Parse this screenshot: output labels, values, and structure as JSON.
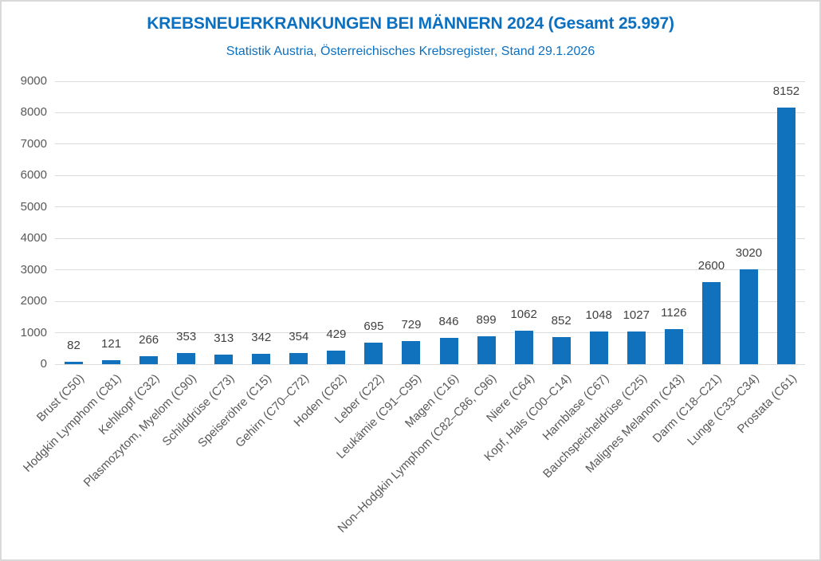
{
  "chart_data": {
    "type": "bar",
    "title": "KREBSNEUERKRANKUNGEN BEI MÄNNERN 2024 (Gesamt 25.997)",
    "subtitle": "Statistik Austria, Österreichisches Krebsregister, Stand 29.1.2026",
    "categories": [
      "Brust (C50)",
      "Hodgkin Lymphom (C81)",
      "Kehlkopf (C32)",
      "Plasmozytom, Myelom (C90)",
      "Schilddrüse (C73)",
      "Speiseröhre (C15)",
      "Gehirn (C70–C72)",
      "Hoden (C62)",
      "Leber (C22)",
      "Leukämie (C91–C95)",
      "Magen (C16)",
      "Non–Hodgkin Lymphom (C82–C86, C96)",
      "Niere (C64)",
      "Kopf, Hals (C00–C14)",
      "Harnblase (C67)",
      "Bauchspeicheldrüse (C25)",
      "Malignes Melanom (C43)",
      "Darm (C18–C21)",
      "Lunge (C33–C34)",
      "Prostata (C61)"
    ],
    "values": [
      82,
      121,
      266,
      353,
      313,
      342,
      354,
      429,
      695,
      729,
      846,
      899,
      1062,
      852,
      1048,
      1027,
      1126,
      2600,
      3020,
      8152
    ],
    "value_labels_shown": true,
    "xlabel": "",
    "ylabel": "",
    "ylim": [
      0,
      9000
    ],
    "yticks": [
      0,
      1000,
      2000,
      3000,
      4000,
      5000,
      6000,
      7000,
      8000,
      9000
    ],
    "grid": true,
    "legend_position": "none",
    "colors": {
      "bar": "#1072BC",
      "title": "#0C70C0",
      "axis_labels": "#595959",
      "value_labels": "#404040",
      "gridline": "#DCDCDC",
      "frame_border": "#D9D9D9",
      "background": "#FFFFFF"
    }
  }
}
